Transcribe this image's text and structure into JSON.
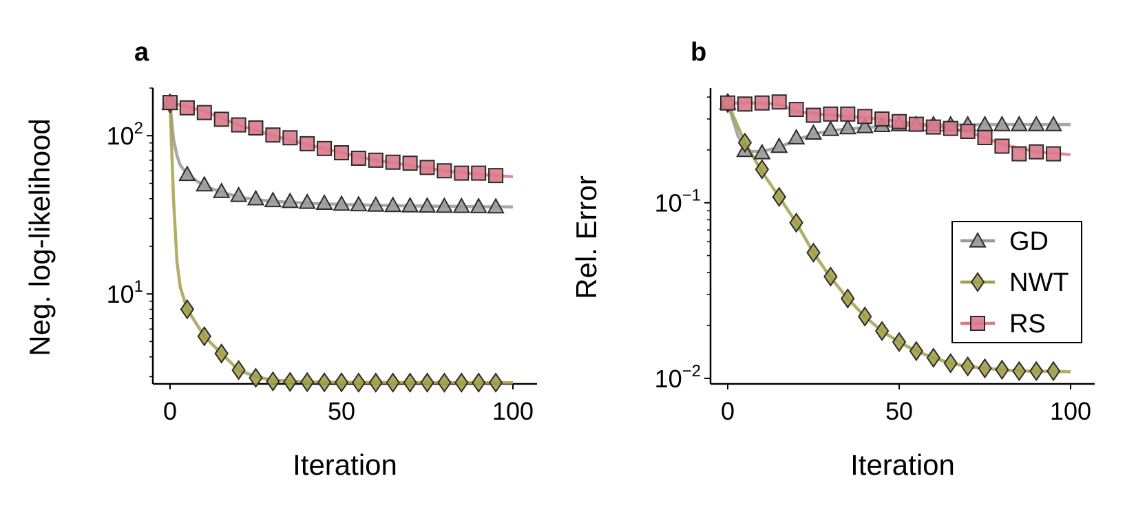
{
  "chart_data": [
    {
      "panel_label": "a",
      "type": "line",
      "xlabel": "Iteration",
      "ylabel": "Neg. log-likelihood",
      "xlim": [
        -5,
        105
      ],
      "ylim": [
        2.7,
        200
      ],
      "yscale": "log",
      "xticks": [
        0,
        50,
        100
      ],
      "xtick_labels": [
        "0",
        "50",
        "100"
      ],
      "yticks": [
        {
          "value": 10,
          "base": "10",
          "exp": "1"
        },
        {
          "value": 100,
          "base": "10",
          "exp": "2"
        }
      ],
      "grid": false,
      "legend": null,
      "series": [
        {
          "name": "GD",
          "color": "#999999",
          "marker": "triangle",
          "line": [
            [
              0,
              160
            ],
            [
              1,
              95
            ],
            [
              2,
              75
            ],
            [
              3,
              65
            ],
            [
              5,
              57
            ],
            [
              10,
              48
            ],
            [
              15,
              44
            ],
            [
              20,
              41
            ],
            [
              25,
              39.5
            ],
            [
              30,
              38.5
            ],
            [
              40,
              37.5
            ],
            [
              50,
              36.8
            ],
            [
              60,
              36.3
            ],
            [
              70,
              36
            ],
            [
              80,
              35.8
            ],
            [
              90,
              35.6
            ],
            [
              100,
              35.5
            ]
          ],
          "markers_x": [
            0,
            5,
            10,
            15,
            20,
            25,
            30,
            35,
            40,
            45,
            50,
            55,
            60,
            65,
            70,
            75,
            80,
            85,
            90,
            95
          ],
          "markers_y": [
            160,
            57,
            49,
            44.5,
            42,
            40,
            39,
            38.5,
            38,
            37.5,
            37,
            36.7,
            36.5,
            36.3,
            36.1,
            36,
            35.9,
            35.8,
            35.7,
            35.6
          ]
        },
        {
          "name": "NWT",
          "color": "#a3a04a",
          "marker": "diamond",
          "line": [
            [
              0,
              160
            ],
            [
              1,
              40
            ],
            [
              2,
              16
            ],
            [
              3,
              11
            ],
            [
              5,
              8
            ],
            [
              10,
              5.4
            ],
            [
              15,
              4.2
            ],
            [
              20,
              3.3
            ],
            [
              25,
              3
            ],
            [
              30,
              2.85
            ],
            [
              40,
              2.78
            ],
            [
              50,
              2.76
            ],
            [
              100,
              2.75
            ]
          ],
          "markers_x": [
            0,
            5,
            10,
            15,
            20,
            25,
            30,
            35,
            40,
            45,
            50,
            55,
            60,
            65,
            70,
            75,
            80,
            85,
            90,
            95
          ],
          "markers_y": [
            160,
            8,
            5.4,
            4.2,
            3.3,
            2.95,
            2.8,
            2.78,
            2.77,
            2.76,
            2.76,
            2.75,
            2.75,
            2.75,
            2.75,
            2.75,
            2.75,
            2.75,
            2.75,
            2.75
          ]
        },
        {
          "name": "RS",
          "color": "#d97a8c",
          "marker": "square",
          "line": [
            [
              0,
              162
            ],
            [
              10,
              143
            ],
            [
              20,
              117
            ],
            [
              30,
              100
            ],
            [
              40,
              88
            ],
            [
              50,
              78
            ],
            [
              60,
              70
            ],
            [
              70,
              65
            ],
            [
              80,
              60
            ],
            [
              90,
              57
            ],
            [
              100,
              55
            ]
          ],
          "markers_x": [
            0,
            5,
            10,
            15,
            20,
            25,
            30,
            35,
            40,
            45,
            50,
            55,
            60,
            65,
            70,
            75,
            80,
            85,
            90,
            95
          ],
          "markers_y": [
            162,
            150,
            140,
            127,
            117,
            112,
            101,
            97,
            89,
            83,
            78,
            72,
            70,
            68,
            67,
            63,
            60,
            58,
            58,
            56
          ]
        }
      ]
    },
    {
      "panel_label": "b",
      "type": "line",
      "xlabel": "Iteration",
      "ylabel": "Rel. Error",
      "xlim": [
        -5,
        105
      ],
      "ylim": [
        0.0093,
        0.45
      ],
      "yscale": "log",
      "xticks": [
        0,
        50,
        100
      ],
      "xtick_labels": [
        "0",
        "50",
        "100"
      ],
      "yticks": [
        {
          "value": 0.01,
          "base": "10",
          "exp": "−2"
        },
        {
          "value": 0.1,
          "base": "10",
          "exp": "−1"
        }
      ],
      "grid": false,
      "legend": {
        "placement": "lower right",
        "entries": [
          "GD",
          "NWT",
          "RS"
        ]
      },
      "series": [
        {
          "name": "GD",
          "color": "#999999",
          "marker": "triangle",
          "line": [
            [
              0,
              0.37
            ],
            [
              3,
              0.24
            ],
            [
              6,
              0.196
            ],
            [
              10,
              0.196
            ],
            [
              15,
              0.207
            ],
            [
              20,
              0.228
            ],
            [
              25,
              0.246
            ],
            [
              30,
              0.258
            ],
            [
              40,
              0.268
            ],
            [
              50,
              0.274
            ],
            [
              60,
              0.277
            ],
            [
              70,
              0.278
            ],
            [
              80,
              0.279
            ],
            [
              100,
              0.279
            ]
          ],
          "markers_x": [
            0,
            5,
            10,
            15,
            20,
            25,
            30,
            35,
            40,
            45,
            50,
            55,
            60,
            65,
            70,
            75,
            80,
            85,
            90,
            95
          ],
          "markers_y": [
            0.37,
            0.199,
            0.193,
            0.21,
            0.235,
            0.25,
            0.262,
            0.268,
            0.272,
            0.276,
            0.279,
            0.279,
            0.279,
            0.279,
            0.279,
            0.279,
            0.279,
            0.279,
            0.279,
            0.279
          ]
        },
        {
          "name": "NWT",
          "color": "#a3a04a",
          "marker": "diamond",
          "line": [
            [
              0,
              0.37
            ],
            [
              5,
              0.22
            ],
            [
              10,
              0.15
            ],
            [
              15,
              0.108
            ],
            [
              20,
              0.077
            ],
            [
              25,
              0.052
            ],
            [
              30,
              0.0375
            ],
            [
              35,
              0.0285
            ],
            [
              40,
              0.0225
            ],
            [
              45,
              0.0186
            ],
            [
              50,
              0.0161
            ],
            [
              55,
              0.0143
            ],
            [
              60,
              0.0131
            ],
            [
              65,
              0.0122
            ],
            [
              70,
              0.0117
            ],
            [
              75,
              0.0114
            ],
            [
              80,
              0.0112
            ],
            [
              85,
              0.011
            ],
            [
              90,
              0.011
            ],
            [
              100,
              0.0109
            ]
          ],
          "markers_x": [
            0,
            5,
            10,
            15,
            20,
            25,
            30,
            35,
            40,
            45,
            50,
            55,
            60,
            65,
            70,
            75,
            80,
            85,
            90,
            95
          ],
          "markers_y": [
            0.37,
            0.22,
            0.155,
            0.108,
            0.077,
            0.052,
            0.038,
            0.0285,
            0.0225,
            0.0186,
            0.0161,
            0.0143,
            0.0131,
            0.0122,
            0.0117,
            0.0114,
            0.0112,
            0.011,
            0.011,
            0.011
          ]
        },
        {
          "name": "RS",
          "color": "#d97a8c",
          "marker": "square",
          "line": [
            [
              0,
              0.37
            ],
            [
              10,
              0.37
            ],
            [
              15,
              0.365
            ],
            [
              20,
              0.33
            ],
            [
              30,
              0.315
            ],
            [
              40,
              0.306
            ],
            [
              50,
              0.29
            ],
            [
              60,
              0.275
            ],
            [
              70,
              0.255
            ],
            [
              80,
              0.215
            ],
            [
              90,
              0.195
            ],
            [
              100,
              0.188
            ]
          ],
          "markers_x": [
            0,
            5,
            10,
            15,
            20,
            25,
            30,
            35,
            40,
            45,
            50,
            55,
            60,
            65,
            70,
            75,
            80,
            85,
            90,
            95
          ],
          "markers_y": [
            0.37,
            0.365,
            0.37,
            0.375,
            0.34,
            0.315,
            0.32,
            0.32,
            0.31,
            0.3,
            0.29,
            0.28,
            0.27,
            0.265,
            0.255,
            0.235,
            0.21,
            0.19,
            0.195,
            0.19
          ]
        }
      ]
    }
  ]
}
